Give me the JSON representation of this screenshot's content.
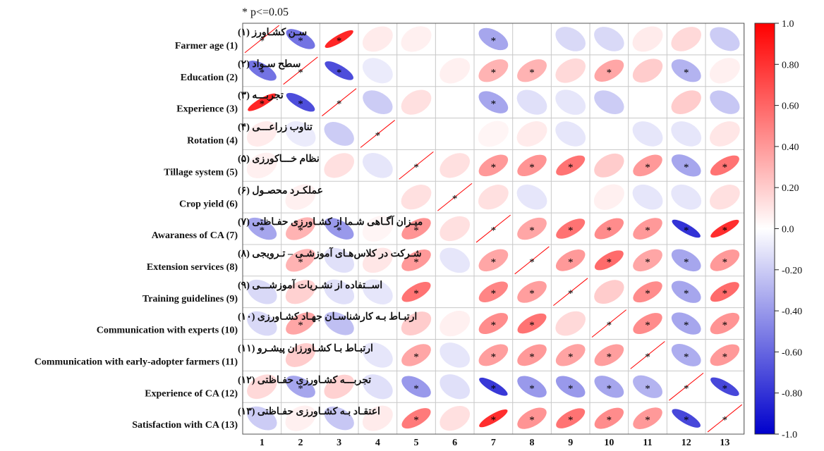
{
  "chart_data": {
    "type": "heatmap",
    "note": "* p<=0.05",
    "variables": [
      {
        "fa": "سـن کشـاورز (۱)",
        "en": "Farmer age (1)"
      },
      {
        "fa": "سطح سـواد (۲)",
        "en": "Education (2)"
      },
      {
        "fa": "تجربـــه (۳)",
        "en": "Experience (3)"
      },
      {
        "fa": "تناوب زراعـــی (۴)",
        "en": "Rotation (4)"
      },
      {
        "fa": "نظام خـــاکورزی (۵)",
        "en": "Tillage system (5)"
      },
      {
        "fa": "عملکـرد محصـول (۶)",
        "en": "Crop yield (6)"
      },
      {
        "fa": "میـزان آگـاهی شـما از کشـاورزی حفـاظتی (۷)",
        "en": "Awaraness of CA (7)"
      },
      {
        "fa": "شـرکت در کلاس‌هـای آموزشـی – تـرویجی (۸)",
        "en": "Extension services (8)"
      },
      {
        "fa": "اســتفاده از نشـریات آموزشـــی (۹)",
        "en": "Training guidelines (9)"
      },
      {
        "fa": "ارتبـاط بـه کارشناسـان جهـاد کشـاورزی (۱۰)",
        "en": "Communication with experts (10)"
      },
      {
        "fa": "ارتبـاط بـا کشـاورزان پیشـرو (۱۱)",
        "en": "Communication with early-adopter farmers (11)"
      },
      {
        "fa": "تجربـــه کشـاورزی حفـاظتی (۱۲)",
        "en": "Experience of CA (12)"
      },
      {
        "fa": "اعتقـاد بـه کشـاورزی حفـاظتی (۱۳)",
        "en": "Satisfaction with CA  (13)"
      }
    ],
    "x_ticks": [
      "1",
      "2",
      "3",
      "4",
      "5",
      "6",
      "7",
      "8",
      "9",
      "10",
      "11",
      "12",
      "13"
    ],
    "matrix": [
      [
        1,
        -0.55,
        0.85,
        0.08,
        0.06,
        0,
        -0.35,
        0,
        -0.15,
        -0.15,
        0.08,
        0.15,
        -0.2
      ],
      [
        -0.55,
        1,
        -0.7,
        -0.08,
        0,
        0.06,
        0.3,
        0.3,
        0.15,
        0.35,
        0.2,
        -0.3,
        0.06
      ],
      [
        0.85,
        -0.7,
        1,
        -0.2,
        0.12,
        0,
        -0.35,
        -0.12,
        -0.1,
        -0.2,
        0,
        0.2,
        -0.22
      ],
      [
        0.08,
        -0.08,
        -0.2,
        1,
        0,
        0,
        0.04,
        0.08,
        -0.1,
        0,
        -0.1,
        -0.1,
        0.1
      ],
      [
        0.06,
        0,
        0.12,
        -0.1,
        1,
        0.12,
        0.4,
        0.42,
        0.55,
        0.2,
        0.4,
        -0.35,
        0.55
      ],
      [
        0,
        0.06,
        0,
        0,
        0.12,
        1,
        0.12,
        -0.1,
        0,
        0.06,
        -0.1,
        -0.1,
        0.12
      ],
      [
        -0.35,
        0.3,
        -0.4,
        0.04,
        0.42,
        0.12,
        1,
        0.35,
        0.55,
        0.45,
        0.4,
        -0.8,
        0.82
      ],
      [
        0,
        0.3,
        -0.12,
        0.1,
        0.4,
        -0.1,
        0.35,
        1,
        0.4,
        0.58,
        0.35,
        -0.35,
        0.4
      ],
      [
        -0.15,
        0.18,
        -0.12,
        -0.1,
        0.55,
        0,
        0.48,
        0.38,
        1,
        0.2,
        0.45,
        -0.35,
        0.58
      ],
      [
        -0.15,
        0.35,
        -0.25,
        0,
        0.2,
        0.06,
        0.45,
        0.55,
        0.15,
        1,
        0.45,
        -0.35,
        0.42
      ],
      [
        0,
        0.2,
        0,
        -0.1,
        0.35,
        -0.1,
        0.38,
        0.4,
        0.36,
        0.38,
        1,
        -0.32,
        0.4
      ],
      [
        0.15,
        -0.35,
        0.18,
        -0.12,
        -0.4,
        -0.12,
        -0.78,
        -0.4,
        -0.4,
        -0.35,
        -0.3,
        1,
        -0.72
      ],
      [
        -0.2,
        0.06,
        -0.22,
        0.08,
        0.52,
        0.12,
        0.82,
        0.42,
        0.55,
        0.45,
        0.4,
        -0.72,
        1
      ]
    ],
    "significant": [
      [
        1,
        1,
        1,
        0,
        0,
        0,
        1,
        0,
        0,
        0,
        0,
        0,
        0
      ],
      [
        1,
        1,
        1,
        0,
        0,
        0,
        1,
        1,
        0,
        1,
        0,
        1,
        0
      ],
      [
        1,
        1,
        1,
        0,
        0,
        0,
        1,
        0,
        0,
        0,
        0,
        0,
        0
      ],
      [
        0,
        0,
        0,
        1,
        0,
        0,
        0,
        0,
        0,
        0,
        0,
        0,
        0
      ],
      [
        0,
        0,
        0,
        0,
        1,
        0,
        1,
        1,
        1,
        0,
        1,
        1,
        1
      ],
      [
        0,
        0,
        0,
        0,
        0,
        1,
        0,
        0,
        0,
        0,
        0,
        0,
        0
      ],
      [
        1,
        1,
        1,
        0,
        1,
        0,
        1,
        1,
        1,
        1,
        1,
        1,
        1
      ],
      [
        0,
        1,
        0,
        0,
        1,
        0,
        1,
        1,
        1,
        1,
        1,
        1,
        1
      ],
      [
        0,
        0,
        0,
        0,
        1,
        0,
        1,
        1,
        1,
        0,
        1,
        1,
        1
      ],
      [
        0,
        1,
        0,
        0,
        0,
        0,
        1,
        1,
        0,
        1,
        1,
        1,
        1
      ],
      [
        0,
        0,
        0,
        0,
        1,
        0,
        1,
        1,
        1,
        1,
        1,
        1,
        1
      ],
      [
        0,
        1,
        0,
        0,
        1,
        0,
        1,
        1,
        1,
        1,
        1,
        1,
        1
      ],
      [
        0,
        0,
        0,
        0,
        1,
        0,
        1,
        1,
        1,
        1,
        1,
        1,
        1
      ]
    ],
    "colorbar": {
      "min": -1.0,
      "max": 1.0,
      "ticks": [
        "1.0",
        "0.80",
        "0.60",
        "0.40",
        "0.20",
        "0.0",
        "-0.20",
        "-0.40",
        "-0.60",
        "-0.80",
        "-1.0"
      ],
      "colors": {
        "negative": "#0000cc",
        "neutral": "#ffffff",
        "positive": "#ff0000"
      }
    }
  }
}
